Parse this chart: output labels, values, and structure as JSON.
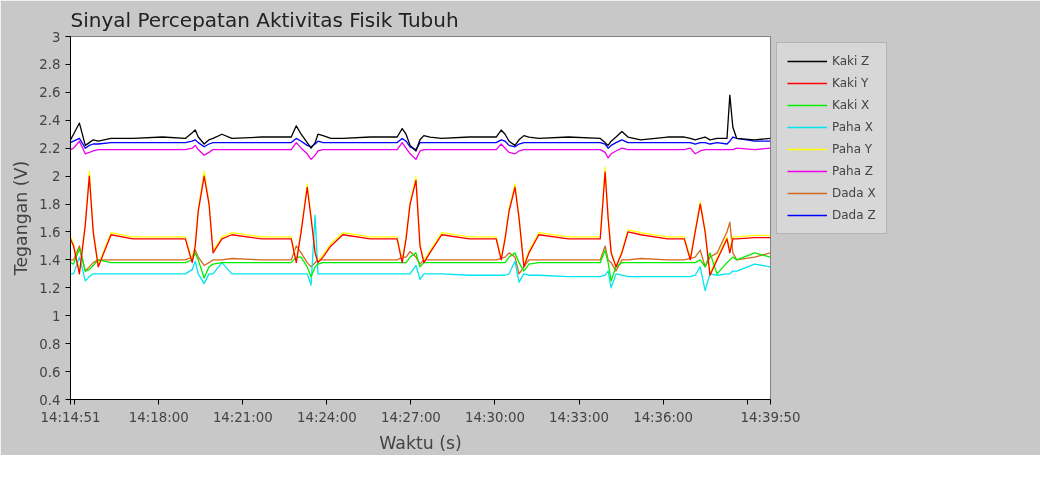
{
  "chart_data": {
    "type": "line",
    "title": "Sinyal Percepatan Aktivitas Fisik Tubuh",
    "xlabel": "Waktu (s)",
    "ylabel": "Tegangan (V)",
    "x": [
      14.2475,
      14.2493,
      14.2528,
      14.2563,
      14.2587,
      14.261,
      14.264,
      14.2716,
      14.2846,
      14.3023,
      14.3158,
      14.3199,
      14.3217,
      14.3235,
      14.327,
      14.3299,
      14.3323,
      14.3376,
      14.3435,
      14.3612,
      14.3788,
      14.3818,
      14.3847,
      14.3883,
      14.3906,
      14.393,
      14.3947,
      14.3977,
      14.4024,
      14.4095,
      14.4259,
      14.4418,
      14.4448,
      14.4471,
      14.4495,
      14.453,
      14.4554,
      14.4577,
      14.4613,
      14.4683,
      14.4848,
      14.5007,
      14.5037,
      14.506,
      14.5084,
      14.5119,
      14.5143,
      14.5172,
      14.5202,
      14.5261,
      14.5437,
      14.5626,
      14.5655,
      14.5673,
      14.5691,
      14.572,
      14.5755,
      14.5791,
      14.5867,
      14.6026,
      14.6126,
      14.6162,
      14.6191,
      14.6221,
      14.625,
      14.6279,
      14.6321,
      14.638,
      14.6397,
      14.6415,
      14.6438,
      14.6544,
      14.6638
    ],
    "series": [
      {
        "name": "Kaki Z",
        "color": "#000000",
        "values": [
          2.26,
          2.3,
          2.38,
          2.22,
          2.24,
          2.26,
          2.25,
          2.27,
          2.27,
          2.28,
          2.27,
          2.31,
          2.33,
          2.28,
          2.23,
          2.26,
          2.27,
          2.3,
          2.27,
          2.28,
          2.28,
          2.36,
          2.3,
          2.24,
          2.2,
          2.24,
          2.3,
          2.29,
          2.27,
          2.27,
          2.28,
          2.28,
          2.34,
          2.3,
          2.22,
          2.18,
          2.26,
          2.29,
          2.28,
          2.27,
          2.28,
          2.28,
          2.33,
          2.3,
          2.25,
          2.22,
          2.26,
          2.29,
          2.28,
          2.27,
          2.28,
          2.27,
          2.24,
          2.22,
          2.25,
          2.28,
          2.32,
          2.28,
          2.26,
          2.28,
          2.28,
          2.27,
          2.26,
          2.27,
          2.28,
          2.26,
          2.27,
          2.27,
          2.58,
          2.35,
          2.27,
          2.26,
          2.27
        ]
      },
      {
        "name": "Kaki Y",
        "color": "#ff0000",
        "values": [
          1.55,
          1.5,
          1.3,
          1.65,
          2.0,
          1.6,
          1.35,
          1.58,
          1.55,
          1.55,
          1.55,
          1.38,
          1.5,
          1.75,
          2.0,
          1.8,
          1.45,
          1.55,
          1.58,
          1.55,
          1.55,
          1.38,
          1.6,
          1.92,
          1.7,
          1.45,
          1.38,
          1.42,
          1.5,
          1.58,
          1.55,
          1.55,
          1.38,
          1.55,
          1.8,
          1.97,
          1.5,
          1.38,
          1.45,
          1.58,
          1.55,
          1.55,
          1.4,
          1.55,
          1.75,
          1.92,
          1.7,
          1.35,
          1.45,
          1.58,
          1.55,
          1.55,
          2.03,
          1.7,
          1.45,
          1.35,
          1.45,
          1.6,
          1.58,
          1.55,
          1.55,
          1.4,
          1.6,
          1.8,
          1.6,
          1.29,
          1.4,
          1.55,
          1.45,
          1.55,
          1.55,
          1.56,
          1.56
        ]
      },
      {
        "name": "Kaki X",
        "color": "#00ee00",
        "values": [
          1.38,
          1.37,
          1.48,
          1.32,
          1.33,
          1.36,
          1.4,
          1.38,
          1.38,
          1.38,
          1.38,
          1.4,
          1.45,
          1.4,
          1.27,
          1.35,
          1.37,
          1.38,
          1.38,
          1.38,
          1.38,
          1.42,
          1.42,
          1.35,
          1.28,
          1.35,
          1.37,
          1.38,
          1.38,
          1.38,
          1.38,
          1.38,
          1.38,
          1.38,
          1.42,
          1.45,
          1.35,
          1.38,
          1.38,
          1.38,
          1.38,
          1.38,
          1.38,
          1.38,
          1.42,
          1.45,
          1.38,
          1.32,
          1.37,
          1.38,
          1.38,
          1.38,
          1.47,
          1.38,
          1.25,
          1.35,
          1.38,
          1.38,
          1.38,
          1.38,
          1.38,
          1.38,
          1.38,
          1.4,
          1.35,
          1.45,
          1.3,
          1.38,
          1.4,
          1.42,
          1.4,
          1.45,
          1.42
        ]
      },
      {
        "name": "Paha X",
        "color": "#00e5ee",
        "values": [
          1.3,
          1.3,
          1.42,
          1.25,
          1.28,
          1.3,
          1.3,
          1.3,
          1.3,
          1.3,
          1.3,
          1.33,
          1.39,
          1.3,
          1.23,
          1.3,
          1.3,
          1.38,
          1.3,
          1.3,
          1.3,
          1.3,
          1.3,
          1.3,
          1.22,
          1.72,
          1.3,
          1.3,
          1.3,
          1.3,
          1.3,
          1.3,
          1.3,
          1.3,
          1.3,
          1.36,
          1.26,
          1.3,
          1.3,
          1.3,
          1.29,
          1.29,
          1.29,
          1.29,
          1.3,
          1.39,
          1.24,
          1.3,
          1.29,
          1.29,
          1.28,
          1.28,
          1.29,
          1.32,
          1.2,
          1.3,
          1.29,
          1.28,
          1.28,
          1.28,
          1.28,
          1.28,
          1.29,
          1.35,
          1.18,
          1.3,
          1.29,
          1.3,
          1.3,
          1.32,
          1.32,
          1.37,
          1.35
        ]
      },
      {
        "name": "Paha Y",
        "color": "#ffff00",
        "values": [
          1.565,
          1.515,
          1.315,
          1.665,
          2.035,
          1.615,
          1.365,
          1.595,
          1.565,
          1.565,
          1.565,
          1.395,
          1.515,
          1.765,
          2.035,
          1.815,
          1.465,
          1.565,
          1.595,
          1.565,
          1.565,
          1.395,
          1.615,
          1.945,
          1.715,
          1.465,
          1.395,
          1.435,
          1.515,
          1.595,
          1.565,
          1.565,
          1.395,
          1.565,
          1.815,
          1.995,
          1.515,
          1.395,
          1.465,
          1.595,
          1.565,
          1.565,
          1.415,
          1.565,
          1.765,
          1.945,
          1.715,
          1.365,
          1.465,
          1.595,
          1.565,
          1.565,
          2.065,
          1.715,
          1.465,
          1.345,
          1.465,
          1.615,
          1.595,
          1.565,
          1.565,
          1.415,
          1.615,
          1.815,
          1.615,
          1.305,
          1.415,
          1.565,
          1.465,
          1.565,
          1.565,
          1.575,
          1.575
        ]
      },
      {
        "name": "Paha Z",
        "color": "#ee00ee",
        "values": [
          2.19,
          2.2,
          2.25,
          2.16,
          2.17,
          2.18,
          2.19,
          2.19,
          2.19,
          2.19,
          2.19,
          2.2,
          2.22,
          2.19,
          2.15,
          2.17,
          2.19,
          2.19,
          2.19,
          2.19,
          2.19,
          2.24,
          2.2,
          2.16,
          2.12,
          2.15,
          2.18,
          2.19,
          2.19,
          2.19,
          2.19,
          2.19,
          2.24,
          2.2,
          2.16,
          2.12,
          2.18,
          2.19,
          2.19,
          2.19,
          2.19,
          2.19,
          2.23,
          2.2,
          2.17,
          2.16,
          2.18,
          2.19,
          2.19,
          2.19,
          2.19,
          2.19,
          2.17,
          2.13,
          2.16,
          2.18,
          2.2,
          2.19,
          2.19,
          2.19,
          2.19,
          2.2,
          2.16,
          2.18,
          2.19,
          2.19,
          2.19,
          2.19,
          2.19,
          2.19,
          2.2,
          2.19,
          2.2
        ]
      },
      {
        "name": "Dada X",
        "color": "#d2691e",
        "values": [
          1.4,
          1.4,
          1.5,
          1.32,
          1.35,
          1.38,
          1.4,
          1.4,
          1.4,
          1.4,
          1.4,
          1.42,
          1.47,
          1.42,
          1.36,
          1.38,
          1.4,
          1.4,
          1.41,
          1.4,
          1.4,
          1.5,
          1.45,
          1.38,
          1.35,
          1.38,
          1.4,
          1.4,
          1.4,
          1.4,
          1.4,
          1.4,
          1.42,
          1.42,
          1.46,
          1.42,
          1.37,
          1.4,
          1.4,
          1.4,
          1.4,
          1.4,
          1.41,
          1.42,
          1.45,
          1.42,
          1.3,
          1.35,
          1.4,
          1.4,
          1.4,
          1.4,
          1.5,
          1.4,
          1.38,
          1.32,
          1.4,
          1.4,
          1.41,
          1.4,
          1.4,
          1.41,
          1.42,
          1.47,
          1.35,
          1.42,
          1.45,
          1.6,
          1.67,
          1.45,
          1.4,
          1.42,
          1.45
        ]
      },
      {
        "name": "Dada Z",
        "color": "#0000ff",
        "values": [
          2.24,
          2.25,
          2.27,
          2.2,
          2.22,
          2.23,
          2.23,
          2.24,
          2.24,
          2.24,
          2.24,
          2.25,
          2.26,
          2.24,
          2.21,
          2.23,
          2.24,
          2.24,
          2.24,
          2.24,
          2.24,
          2.27,
          2.25,
          2.22,
          2.21,
          2.23,
          2.25,
          2.24,
          2.24,
          2.24,
          2.24,
          2.24,
          2.27,
          2.25,
          2.21,
          2.19,
          2.24,
          2.24,
          2.24,
          2.24,
          2.24,
          2.24,
          2.26,
          2.25,
          2.22,
          2.21,
          2.23,
          2.24,
          2.24,
          2.24,
          2.24,
          2.24,
          2.23,
          2.2,
          2.22,
          2.24,
          2.26,
          2.24,
          2.24,
          2.24,
          2.24,
          2.24,
          2.23,
          2.24,
          2.24,
          2.23,
          2.24,
          2.23,
          2.25,
          2.28,
          2.27,
          2.25,
          2.25
        ]
      }
    ],
    "xlim": [
      14.2475,
      14.66389
    ],
    "xticks": [
      {
        "value": 14.2475,
        "label": "14:14:51"
      },
      {
        "value": 14.25,
        "label": null
      },
      {
        "value": 14.3,
        "label": "14:18:00"
      },
      {
        "value": 14.35,
        "label": "14:21:00"
      },
      {
        "value": 14.4,
        "label": "14:24:00"
      },
      {
        "value": 14.45,
        "label": "14:27:00"
      },
      {
        "value": 14.5,
        "label": "14:30:00"
      },
      {
        "value": 14.55,
        "label": "14:33:00"
      },
      {
        "value": 14.6,
        "label": "14:36:00"
      },
      {
        "value": 14.65,
        "label": null
      },
      {
        "value": 14.66389,
        "label": "14:39:50"
      }
    ],
    "ylim": [
      0.4,
      3
    ],
    "yticks": [
      0.4,
      0.6,
      0.8,
      1,
      1.2,
      1.4,
      1.6,
      1.8,
      2,
      2.2,
      2.4,
      2.6,
      2.8,
      3
    ],
    "grid": false,
    "legend": "right",
    "marker": "none",
    "line_style": "solid"
  }
}
